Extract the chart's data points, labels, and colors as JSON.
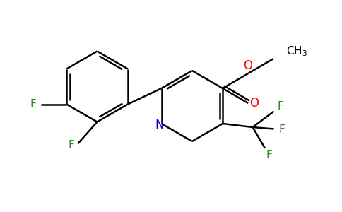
{
  "background_color": "#ffffff",
  "bond_color": "#000000",
  "N_color": "#0000cd",
  "O_color": "#ff0000",
  "F_color": "#228b22",
  "line_width": 1.8,
  "figsize": [
    4.84,
    3.0
  ],
  "dpi": 100,
  "xlim": [
    0,
    9.68
  ],
  "ylim": [
    0,
    6.0
  ]
}
